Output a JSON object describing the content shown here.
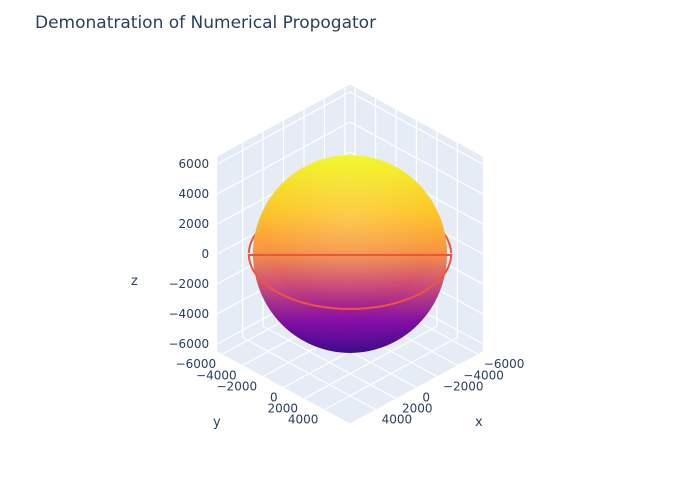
{
  "chart_data": {
    "type": "3d-surface-with-line",
    "title": "Demonatration of Numerical Propogator",
    "xlabel": "x",
    "ylabel": "y",
    "zlabel": "z",
    "x_ticks": [
      "−6000",
      "−4000",
      "−2000",
      "0",
      "2000",
      "4000"
    ],
    "y_ticks": [
      "−6000",
      "−4000",
      "−2000",
      "0",
      "2000",
      "4000"
    ],
    "z_ticks": [
      "−6000",
      "−4000",
      "−2000",
      "0",
      "2000",
      "4000",
      "6000"
    ],
    "x_tick_values": [
      -6000,
      -4000,
      -2000,
      0,
      2000,
      4000
    ],
    "y_tick_values": [
      -6000,
      -4000,
      -2000,
      0,
      2000,
      4000
    ],
    "z_tick_values": [
      -6000,
      -4000,
      -2000,
      0,
      2000,
      4000,
      6000
    ],
    "axis_range": [
      -6500,
      6500
    ],
    "sphere": {
      "radius": 6378,
      "colorscale": [
        "#0d0887",
        "#7e03a8",
        "#cc4778",
        "#f89540",
        "#f0f921"
      ]
    },
    "orbit": {
      "radius": 7000,
      "z": 0,
      "color": "#ef553b"
    },
    "grid": true,
    "background": "#e5ecf6"
  }
}
